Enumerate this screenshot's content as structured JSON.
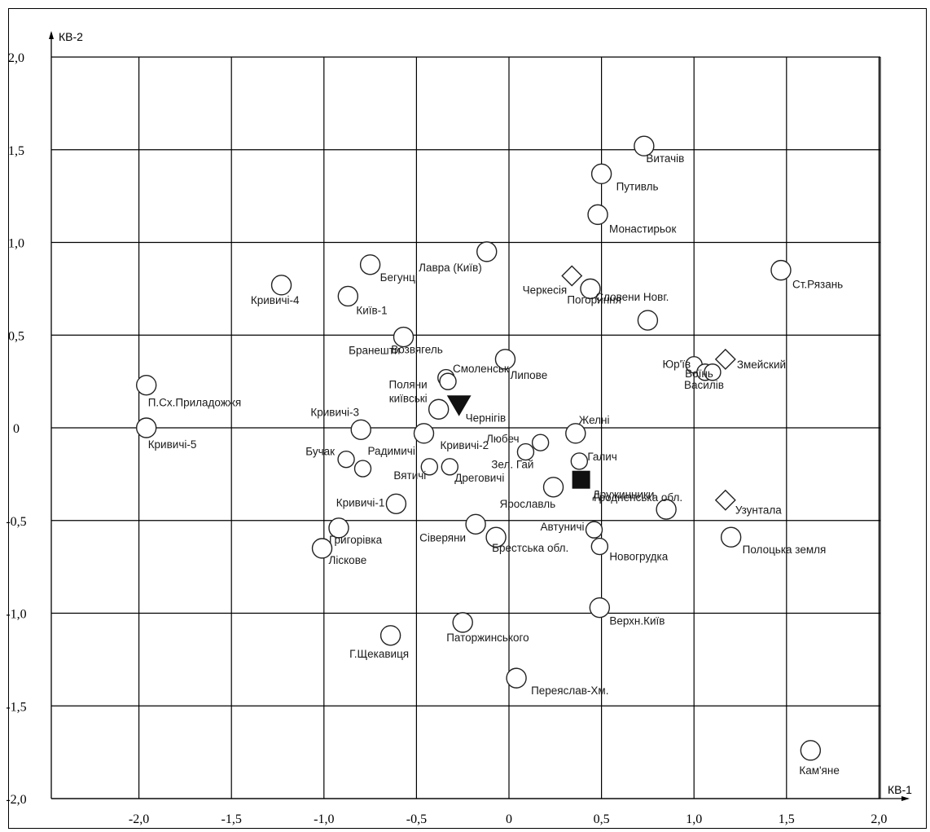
{
  "chart_data": {
    "type": "scatter",
    "xlabel": "КВ-1",
    "ylabel": "КВ-2",
    "xlim": [
      -2.5,
      2.25
    ],
    "ylim": [
      -2.0,
      2.0
    ],
    "x_ticks": [
      -2.0,
      -1.5,
      -1.0,
      -0.5,
      0,
      0.5,
      1.0,
      1.5,
      2.0
    ],
    "x_tick_labels": [
      "-2,0",
      "-1,5",
      "-1,0",
      "-0,5",
      "0",
      "0,5",
      "1,0",
      "1,5",
      "2,0"
    ],
    "y_ticks": [
      2.0,
      1.5,
      1.0,
      0.5,
      0,
      -0.5,
      -1.0,
      -1.5,
      -2.0
    ],
    "y_tick_labels": [
      "2,0",
      "1,5",
      "1,0",
      "0,5",
      "0",
      "-0,5",
      "-1,0",
      "-1,5",
      "-2,0"
    ],
    "grid": true,
    "points": [
      {
        "x": 0.73,
        "y": 1.52,
        "r": 12,
        "marker": "circle",
        "label": "Витачів"
      },
      {
        "x": 0.5,
        "y": 1.37,
        "r": 12,
        "marker": "circle",
        "label": "Путивль"
      },
      {
        "x": 0.48,
        "y": 1.15,
        "r": 12,
        "marker": "circle",
        "label": "Монастирьок"
      },
      {
        "x": -0.12,
        "y": 0.95,
        "r": 12,
        "marker": "circle",
        "label": "Лавра (Київ)"
      },
      {
        "x": 1.47,
        "y": 0.85,
        "r": 12,
        "marker": "circle",
        "label": "Ст.Рязань"
      },
      {
        "x": -0.75,
        "y": 0.88,
        "r": 12,
        "marker": "circle",
        "label": "Бегунці"
      },
      {
        "x": -1.23,
        "y": 0.77,
        "r": 12,
        "marker": "circle",
        "label": "Кривичі-4"
      },
      {
        "x": -0.87,
        "y": 0.71,
        "r": 12,
        "marker": "circle",
        "label": "Київ-1"
      },
      {
        "x": 0.34,
        "y": 0.82,
        "r": 0,
        "marker": "diamond",
        "label": "Черкесія"
      },
      {
        "x": 0.44,
        "y": 0.75,
        "r": 12,
        "marker": "circle",
        "label": "Погориння"
      },
      {
        "x": 0.75,
        "y": 0.58,
        "r": 12,
        "marker": "circle",
        "label": "Словени Новг."
      },
      {
        "x": -0.57,
        "y": 0.49,
        "r": 12,
        "marker": "circle",
        "label": "Бранешти"
      },
      {
        "x": -0.02,
        "y": 0.37,
        "r": 12,
        "marker": "circle",
        "label": "Липове"
      },
      {
        "x": 1.0,
        "y": 0.34,
        "r": 10,
        "marker": "circle",
        "label": "Юр'їв"
      },
      {
        "x": 1.06,
        "y": 0.3,
        "r": 10,
        "marker": "circle",
        "label": "Воїнь"
      },
      {
        "x": 1.1,
        "y": 0.3,
        "r": 10,
        "marker": "circle",
        "label": "Василів"
      },
      {
        "x": 1.17,
        "y": 0.37,
        "r": 0,
        "marker": "diamond",
        "label": "Змейский"
      },
      {
        "x": -0.34,
        "y": 0.27,
        "r": 10,
        "marker": "circle",
        "label": "Возвягель"
      },
      {
        "x": -0.33,
        "y": 0.25,
        "r": 10,
        "marker": "circle",
        "label": "Смоленськ"
      },
      {
        "x": -0.38,
        "y": 0.1,
        "r": 12,
        "marker": "circle",
        "label": "Поляни київські"
      },
      {
        "x": -0.27,
        "y": 0.12,
        "r": 0,
        "marker": "triangle",
        "label": "Чернігів"
      },
      {
        "x": -1.96,
        "y": 0.23,
        "r": 12,
        "marker": "circle",
        "label": "П.Сх.Приладожжя"
      },
      {
        "x": -1.96,
        "y": 0.0,
        "r": 12,
        "marker": "circle",
        "label": "Кривичі-5"
      },
      {
        "x": -0.8,
        "y": -0.01,
        "r": 12,
        "marker": "circle",
        "label": "Кривичі-3"
      },
      {
        "x": -0.46,
        "y": -0.03,
        "r": 12,
        "marker": "circle",
        "label": "Кривичі-2"
      },
      {
        "x": 0.36,
        "y": -0.03,
        "r": 12,
        "marker": "circle",
        "label": "Желні"
      },
      {
        "x": 0.17,
        "y": -0.08,
        "r": 10,
        "marker": "circle",
        "label": "Любеч"
      },
      {
        "x": 0.09,
        "y": -0.13,
        "r": 10,
        "marker": "circle",
        "label": "Зел. Гай"
      },
      {
        "x": 0.38,
        "y": -0.18,
        "r": 10,
        "marker": "circle",
        "label": "Галич"
      },
      {
        "x": -0.88,
        "y": -0.17,
        "r": 10,
        "marker": "circle",
        "label": "Бучак"
      },
      {
        "x": -0.79,
        "y": -0.22,
        "r": 10,
        "marker": "circle",
        "label": "Радимичі"
      },
      {
        "x": -0.43,
        "y": -0.21,
        "r": 10,
        "marker": "circle",
        "label": "Вятичі"
      },
      {
        "x": -0.32,
        "y": -0.21,
        "r": 10,
        "marker": "circle",
        "label": "Дреговичі"
      },
      {
        "x": 0.39,
        "y": -0.28,
        "r": 0,
        "marker": "square",
        "label": "Дружинники"
      },
      {
        "x": 0.24,
        "y": -0.32,
        "r": 12,
        "marker": "circle",
        "label": "Ярославль"
      },
      {
        "x": -0.61,
        "y": -0.41,
        "r": 12,
        "marker": "circle",
        "label": "Кривичі-1"
      },
      {
        "x": 0.85,
        "y": -0.44,
        "r": 12,
        "marker": "circle",
        "label": "Гродненська обл."
      },
      {
        "x": 1.17,
        "y": -0.39,
        "r": 0,
        "marker": "diamond",
        "label": "Узунтала"
      },
      {
        "x": -0.92,
        "y": -0.54,
        "r": 12,
        "marker": "circle",
        "label": "Григорівка"
      },
      {
        "x": -0.18,
        "y": -0.52,
        "r": 12,
        "marker": "circle",
        "label": "Сіверяни"
      },
      {
        "x": -0.07,
        "y": -0.59,
        "r": 12,
        "marker": "circle",
        "label": "Брестська обл."
      },
      {
        "x": 0.46,
        "y": -0.55,
        "r": 10,
        "marker": "circle",
        "label": "Автуничі"
      },
      {
        "x": 0.49,
        "y": -0.64,
        "r": 10,
        "marker": "circle",
        "label": "Новогрудка"
      },
      {
        "x": 1.2,
        "y": -0.59,
        "r": 12,
        "marker": "circle",
        "label": "Полоцька земля"
      },
      {
        "x": -1.01,
        "y": -0.65,
        "r": 12,
        "marker": "circle",
        "label": "Ліскове"
      },
      {
        "x": 0.49,
        "y": -0.97,
        "r": 12,
        "marker": "circle",
        "label": "Верхн.Київ"
      },
      {
        "x": -0.25,
        "y": -1.05,
        "r": 12,
        "marker": "circle",
        "label": "Паторжинського"
      },
      {
        "x": -0.64,
        "y": -1.12,
        "r": 12,
        "marker": "circle",
        "label": "Г.Щекавиця"
      },
      {
        "x": 0.04,
        "y": -1.35,
        "r": 12,
        "marker": "circle",
        "label": "Переяслав-Хм."
      },
      {
        "x": 1.63,
        "y": -1.74,
        "r": 12,
        "marker": "circle",
        "label": "Кам'яне"
      }
    ]
  }
}
